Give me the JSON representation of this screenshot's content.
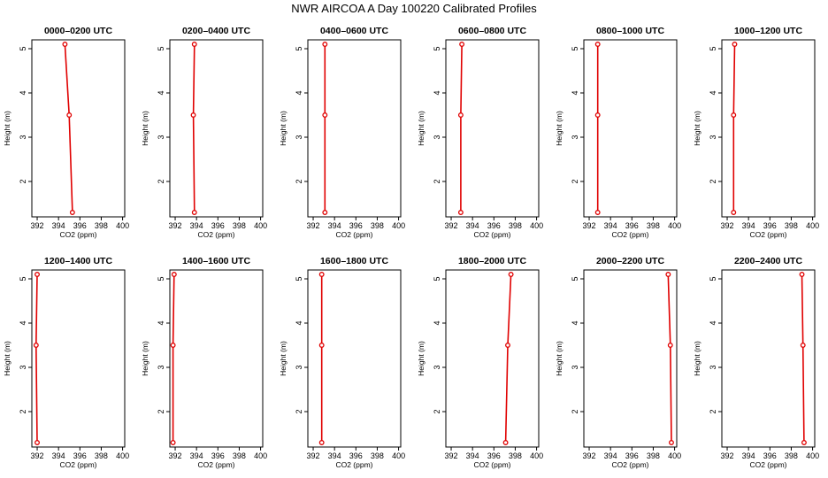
{
  "figure": {
    "title": "NWR AIRCOA A  Day 100220  Calibrated Profiles"
  },
  "chart_data": {
    "type": "line",
    "xlabel": "CO2 (ppm)",
    "ylabel": "Height (m)",
    "xlim": [
      391.5,
      400.2
    ],
    "ylim": [
      1.2,
      5.2
    ],
    "xticks": [
      392,
      394,
      396,
      398,
      400
    ],
    "yticks": [
      2,
      3,
      4,
      5
    ],
    "heights": [
      1.3,
      3.5,
      5.1
    ],
    "color": "#e00000",
    "panels": [
      {
        "title": "0000–0200 UTC",
        "values": [
          395.3,
          395.0,
          394.6
        ]
      },
      {
        "title": "0200–0400 UTC",
        "values": [
          393.8,
          393.7,
          393.8
        ]
      },
      {
        "title": "0400–0600 UTC",
        "values": [
          393.1,
          393.1,
          393.1
        ]
      },
      {
        "title": "0600–0800 UTC",
        "values": [
          392.9,
          392.9,
          393.0
        ]
      },
      {
        "title": "0800–1000 UTC",
        "values": [
          392.8,
          392.8,
          392.8
        ]
      },
      {
        "title": "1000–1200 UTC",
        "values": [
          392.6,
          392.6,
          392.7
        ]
      },
      {
        "title": "1200–1400 UTC",
        "values": [
          392.0,
          391.9,
          392.0
        ]
      },
      {
        "title": "1400–1600 UTC",
        "values": [
          391.8,
          391.8,
          391.9
        ]
      },
      {
        "title": "1600–1800 UTC",
        "values": [
          392.8,
          392.8,
          392.8
        ]
      },
      {
        "title": "1800–2000 UTC",
        "values": [
          397.1,
          397.3,
          397.6
        ]
      },
      {
        "title": "2000–2200 UTC",
        "values": [
          399.7,
          399.6,
          399.4
        ]
      },
      {
        "title": "2200–2400 UTC",
        "values": [
          399.2,
          399.1,
          399.0
        ]
      }
    ]
  }
}
